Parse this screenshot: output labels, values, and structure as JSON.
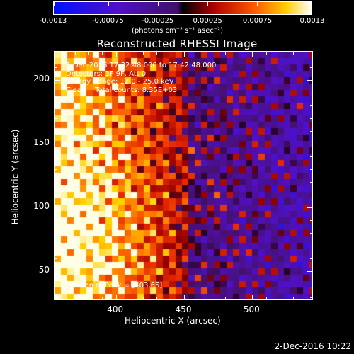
{
  "colorbar": {
    "tick_labels": [
      "-0.0013",
      "-0.00075",
      "-0.00025",
      "0.00025",
      "0.00075",
      "0.0013"
    ],
    "units_label": "(photons cm⁻² s⁻¹ asec⁻²)",
    "range": [
      -0.0013,
      0.0013
    ]
  },
  "title": "Reconstructed RHESSI Image",
  "info": {
    "time_range": "1-Dec-2016 17:32:48.000 to 17:42:48.000",
    "detectors": "Detectors: 3F 9F, Att 0",
    "energy_range": "Energy Range: 12.0 - 25.0 keV",
    "clean_counts": "Clean    Total counts: 8.35E+03"
  },
  "peak": "Position of Peak = [403,65]",
  "axes": {
    "xlabel": "Heliocentric X (arcsec)",
    "ylabel": "Heliocentric Y (arcsec)",
    "x_ticks": [
      "400",
      "450",
      "500"
    ],
    "y_ticks": [
      "200",
      "150",
      "100",
      "50"
    ],
    "xlim": [
      355,
      545
    ],
    "ylim": [
      27,
      222
    ]
  },
  "timestamp": "2-Dec-2016 10:22"
}
